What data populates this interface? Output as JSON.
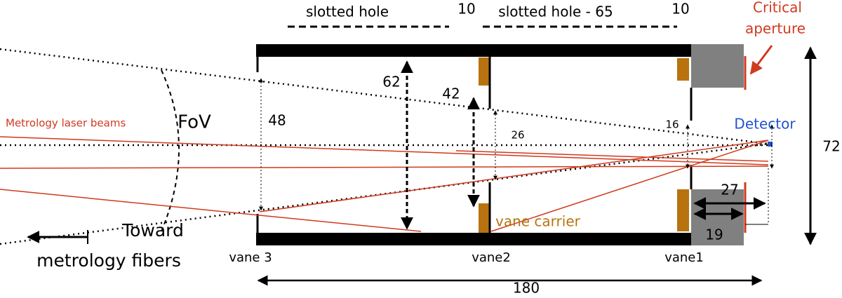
{
  "dimensions": {
    "slot_a_label": "slotted hole",
    "slot_a_width": "10",
    "slot_b_label": "slotted hole - 65",
    "slot_b_width": "10",
    "vane3_gap": "48",
    "tube_inner": "62",
    "vane2_gap": "42",
    "vane2_inner": "26",
    "vane1_gap": "16",
    "tube_outer": "72",
    "aperture_dist": "27",
    "block_len": "19",
    "total_len": "180"
  },
  "labels": {
    "critical_aperture": [
      "Critical",
      "aperture"
    ],
    "detector": "Detector",
    "fov": "FoV",
    "laser": "Metrology laser beams",
    "vane_carrier": "vane carrier",
    "toward": [
      "Toward",
      "metrology fibers"
    ]
  },
  "vanes": [
    "vane 3",
    "vane2",
    "vane1"
  ]
}
